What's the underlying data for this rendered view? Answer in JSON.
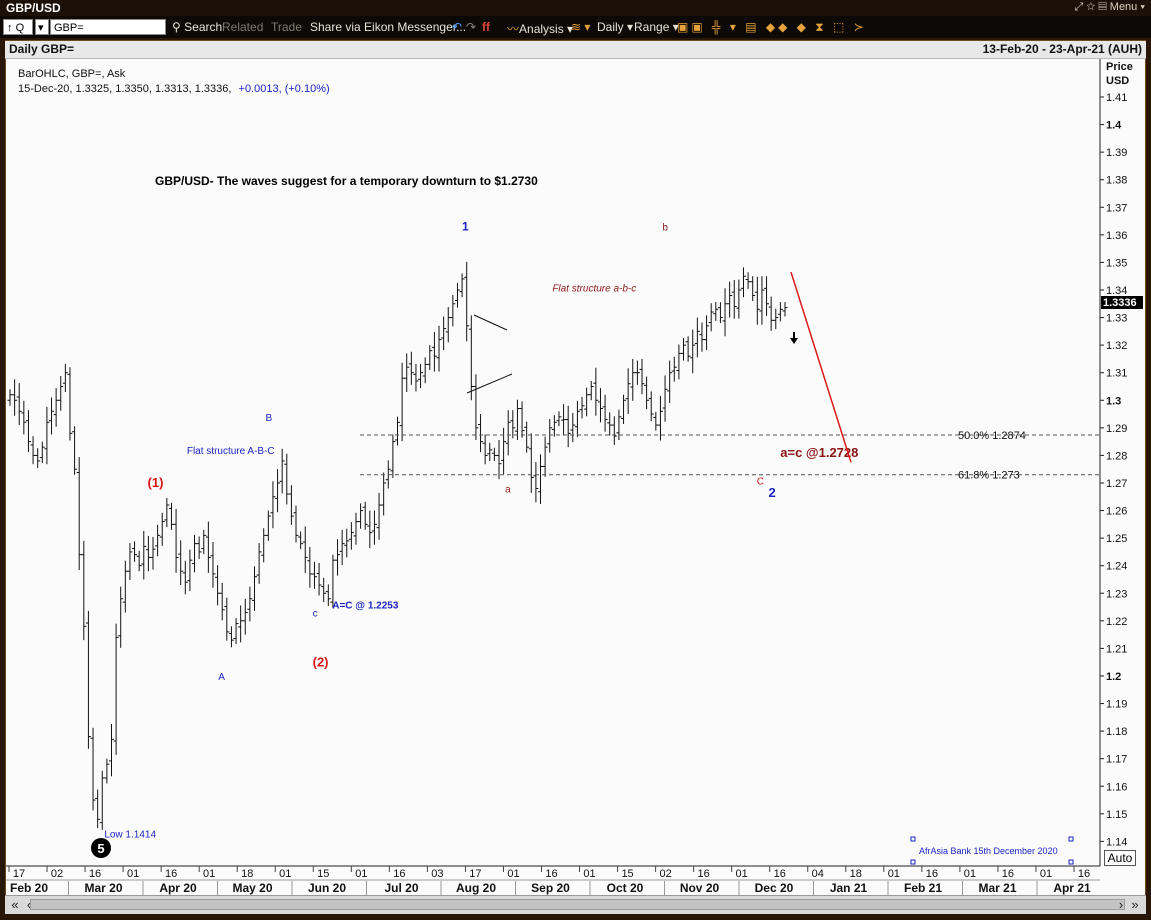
{
  "window": {
    "title": "GBP/USD",
    "menu_label": "Menu"
  },
  "toolbar": {
    "symbol_value": "GBP=",
    "quote_prefix": "Q",
    "search_label": "Search",
    "related_label": "Related",
    "trade_label": "Trade",
    "share_label": "Share via Eikon Messenger...",
    "analysis_label": "Analysis",
    "interval_label": "Daily",
    "range_label": "Range"
  },
  "chart_header": {
    "left": "Daily GBP=",
    "right": "13-Feb-20 - 23-Apr-21 (AUH)"
  },
  "auto_label": "Auto",
  "chart_data": {
    "type": "ohlc",
    "title": "GBP/USD- The waves suggest for a temporary downturn to $1.2730",
    "info_line1": "BarOHLC, GBP=, Ask",
    "info_line2_values": "15-Dec-20, 1.3325, 1.3350, 1.3313, 1.3336,",
    "info_line2_change": "+0.0013, (+0.10%)",
    "ylabel_top": "Price",
    "ylabel_unit": "USD",
    "ylim": [
      1.135,
      1.425
    ],
    "y_ticks": [
      1.41,
      1.4,
      1.39,
      1.38,
      1.37,
      1.36,
      1.35,
      1.34,
      1.33,
      1.32,
      1.31,
      1.3,
      1.29,
      1.28,
      1.27,
      1.26,
      1.25,
      1.24,
      1.23,
      1.22,
      1.21,
      1.2,
      1.19,
      1.18,
      1.17,
      1.16,
      1.15,
      1.14
    ],
    "y_ticks_bold": [
      1.4,
      1.3,
      1.2
    ],
    "last_price": "1.3336",
    "x_day_ticks": [
      "17",
      "02",
      "16",
      "01",
      "16",
      "01",
      "18",
      "01",
      "15",
      "01",
      "16",
      "03",
      "17",
      "01",
      "16",
      "01",
      "15",
      "02",
      "16",
      "01",
      "16",
      "04",
      "18",
      "01",
      "16",
      "01",
      "16",
      "01",
      "16"
    ],
    "x_month_labels": [
      "Feb 20",
      "Mar 20",
      "Apr 20",
      "May 20",
      "Jun 20",
      "Jul 20",
      "Aug 20",
      "Sep 20",
      "Oct 20",
      "Nov 20",
      "Dec 20",
      "Jan 21",
      "Feb 21",
      "Mar 21",
      "Apr 21"
    ],
    "prices_daily_close_approx": [
      1.302,
      1.3,
      1.296,
      1.292,
      1.285,
      1.28,
      1.278,
      1.283,
      1.292,
      1.296,
      1.3,
      1.305,
      1.31,
      1.288,
      1.275,
      1.244,
      1.218,
      1.178,
      1.155,
      1.148,
      1.163,
      1.168,
      1.177,
      1.214,
      1.228,
      1.238,
      1.245,
      1.244,
      1.24,
      1.247,
      1.243,
      1.246,
      1.251,
      1.256,
      1.262,
      1.255,
      1.243,
      1.238,
      1.234,
      1.242,
      1.248,
      1.245,
      1.251,
      1.243,
      1.237,
      1.23,
      1.224,
      1.216,
      1.213,
      1.219,
      1.22,
      1.223,
      1.228,
      1.236,
      1.245,
      1.251,
      1.258,
      1.265,
      1.27,
      1.278,
      1.266,
      1.258,
      1.251,
      1.248,
      1.243,
      1.237,
      1.236,
      1.233,
      1.23,
      1.228,
      1.242,
      1.244,
      1.248,
      1.249,
      1.252,
      1.256,
      1.26,
      1.255,
      1.252,
      1.255,
      1.262,
      1.27,
      1.275,
      1.285,
      1.292,
      1.308,
      1.312,
      1.31,
      1.307,
      1.31,
      1.313,
      1.318,
      1.316,
      1.322,
      1.326,
      1.33,
      1.335,
      1.34,
      1.344,
      1.327,
      1.305,
      1.29,
      1.285,
      1.28,
      1.282,
      1.28,
      1.277,
      1.285,
      1.292,
      1.29,
      1.297,
      1.289,
      1.283,
      1.272,
      1.268,
      1.276,
      1.283,
      1.29,
      1.292,
      1.294,
      1.293,
      1.288,
      1.291,
      1.296,
      1.298,
      1.302,
      1.305,
      1.3,
      1.297,
      1.293,
      1.291,
      1.287,
      1.294,
      1.3,
      1.306,
      1.31,
      1.31,
      1.306,
      1.3,
      1.295,
      1.291,
      1.296,
      1.304,
      1.31,
      1.312,
      1.317,
      1.32,
      1.316,
      1.32,
      1.325,
      1.322,
      1.327,
      1.332,
      1.333,
      1.33,
      1.335,
      1.338,
      1.334,
      1.34,
      1.345,
      1.343,
      1.338,
      1.333,
      1.34,
      1.335,
      1.329,
      1.33,
      1.333,
      1.3336
    ],
    "annotations": [
      {
        "text": "1",
        "price": 1.3615,
        "date_idx": 115,
        "color": "#1a23c2",
        "bold": true,
        "size": 12
      },
      {
        "text": "Flat structure a-b-c",
        "price": 1.3395,
        "date_idx": 138,
        "color": "#8f1a1a",
        "italic": true,
        "size": 10
      },
      {
        "text": "b",
        "price": 1.3615,
        "date_idx": 166,
        "color": "#8f1a1a",
        "size": 10
      },
      {
        "text": "B",
        "price": 1.2925,
        "date_idx": 65,
        "color": "#1a23c2",
        "size": 10
      },
      {
        "text": "Flat structure A-B-C",
        "price": 1.2805,
        "date_idx": 45,
        "color": "#1a23c2",
        "size": 10
      },
      {
        "text": "(1)",
        "price": 1.2685,
        "date_idx": 35,
        "color": "#d91616",
        "bold": true,
        "size": 13
      },
      {
        "text": "a",
        "price": 1.2665,
        "date_idx": 126,
        "color": "#8f1a1a",
        "size": 10
      },
      {
        "text": "c",
        "price": 1.2215,
        "date_idx": 77,
        "color": "#1a23c2",
        "size": 10
      },
      {
        "text": "A=C @ 1.2253",
        "price": 1.2245,
        "date_idx": 82,
        "color": "#1a23c2",
        "bold": true,
        "size": 10
      },
      {
        "text": "(2)",
        "price": 1.2035,
        "date_idx": 77,
        "color": "#d91616",
        "bold": true,
        "size": 13
      },
      {
        "text": "A",
        "price": 1.1985,
        "date_idx": 53,
        "color": "#1a23c2",
        "size": 10
      },
      {
        "text": "a=c @1.2728",
        "price": 1.2795,
        "date_idx": 196,
        "color": "#8b1212",
        "bold": true,
        "size": 13
      },
      {
        "text": "C",
        "price": 1.2695,
        "date_idx": 190,
        "color": "#d91616",
        "size": 10
      },
      {
        "text": "2",
        "price": 1.265,
        "date_idx": 193,
        "color": "#1a23c2",
        "bold": true,
        "size": 13
      },
      {
        "text": "Low 1.1414",
        "price": 1.1415,
        "date_idx": 24,
        "color": "#1a23c2",
        "size": 10
      }
    ],
    "horizontal_levels": [
      {
        "price": 1.2874,
        "label": "50.0% 1.2874"
      },
      {
        "price": 1.273,
        "label": "61.8% 1.273"
      }
    ],
    "forecast_line": {
      "from_price": 1.3465,
      "to_price": 1.2775,
      "color": "#e01818"
    },
    "wave5_marker": "5",
    "footer_note": "AfrAsia Bank 15th December 2020"
  }
}
